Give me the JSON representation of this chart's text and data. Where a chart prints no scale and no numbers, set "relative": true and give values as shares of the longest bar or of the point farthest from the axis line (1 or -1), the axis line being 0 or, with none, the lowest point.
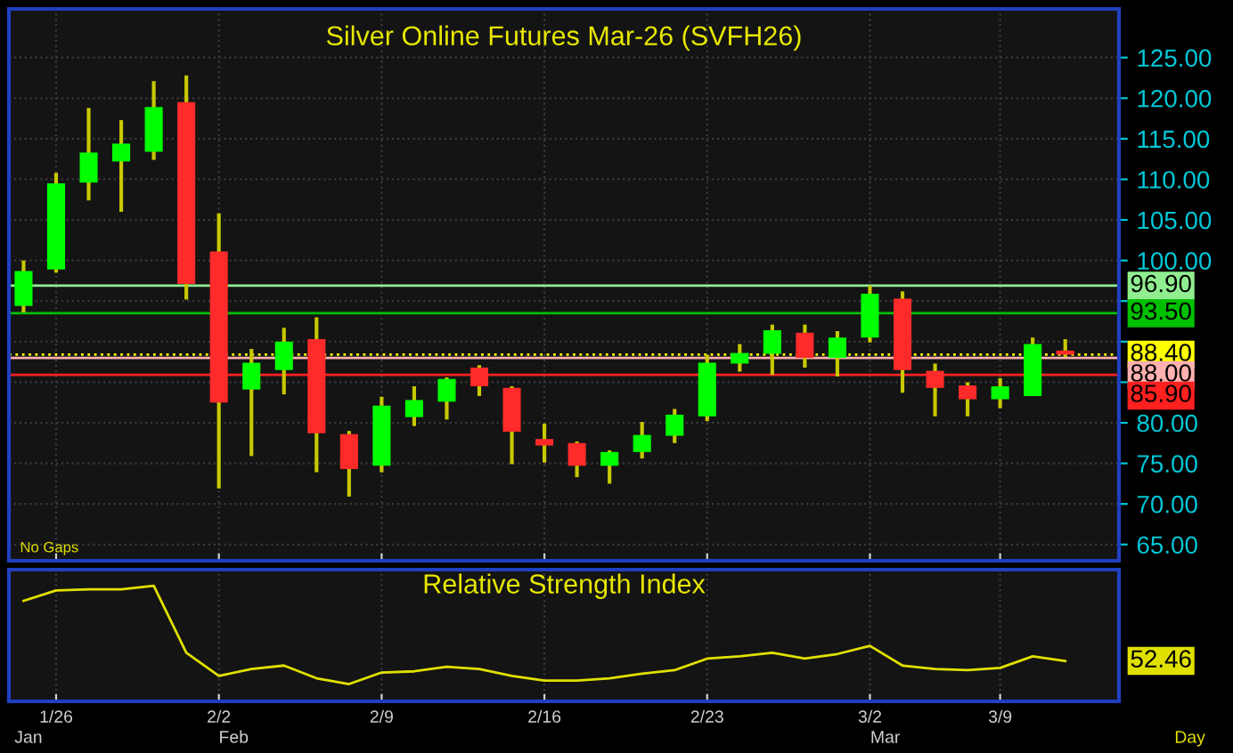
{
  "chart_data": [
    {
      "type": "candlestick",
      "title": "Silver Online Futures Mar-26 (SVFH26)",
      "categories": [
        null,
        null,
        null,
        null,
        null,
        null,
        null,
        null,
        null,
        null,
        null,
        null,
        null,
        null,
        null,
        null,
        null,
        null,
        null,
        null,
        null,
        null,
        null,
        null,
        null,
        null,
        null,
        null,
        null,
        null,
        null,
        null,
        null
      ],
      "ohlc": [
        [
          94.4,
          100.0,
          93.6,
          98.7
        ],
        [
          98.9,
          110.8,
          98.5,
          109.5
        ],
        [
          109.6,
          118.8,
          107.4,
          113.3
        ],
        [
          112.2,
          117.3,
          106.0,
          114.4
        ],
        [
          113.4,
          122.1,
          112.4,
          118.9
        ],
        [
          119.5,
          122.8,
          95.2,
          97.1
        ],
        [
          101.1,
          105.8,
          71.9,
          82.5
        ],
        [
          84.1,
          89.1,
          75.9,
          87.4
        ],
        [
          86.5,
          91.7,
          83.5,
          90.0
        ],
        [
          90.3,
          93.0,
          73.9,
          78.7
        ],
        [
          78.6,
          79.0,
          70.9,
          74.3
        ],
        [
          74.7,
          83.2,
          73.9,
          82.1
        ],
        [
          80.7,
          84.5,
          79.6,
          82.8
        ],
        [
          82.6,
          85.6,
          80.4,
          85.4
        ],
        [
          86.8,
          87.1,
          83.3,
          84.5
        ],
        [
          84.3,
          84.5,
          74.9,
          78.9
        ],
        [
          78.0,
          79.9,
          75.1,
          77.2
        ],
        [
          77.5,
          77.7,
          73.3,
          74.7
        ],
        [
          74.7,
          76.6,
          72.5,
          76.4
        ],
        [
          76.4,
          80.1,
          75.6,
          78.5
        ],
        [
          78.4,
          81.7,
          77.5,
          81.0
        ],
        [
          80.8,
          88.4,
          80.2,
          87.4
        ],
        [
          87.3,
          89.7,
          86.3,
          88.6
        ],
        [
          88.5,
          92.1,
          85.9,
          91.4
        ],
        [
          91.1,
          92.1,
          86.8,
          88.0
        ],
        [
          88.0,
          91.3,
          85.7,
          90.5
        ],
        [
          90.5,
          96.9,
          89.9,
          95.9
        ],
        [
          95.3,
          96.2,
          83.7,
          86.5
        ],
        [
          86.4,
          87.3,
          80.8,
          84.3
        ],
        [
          84.6,
          85.0,
          80.8,
          82.9
        ],
        [
          82.9,
          85.5,
          81.8,
          84.5
        ],
        [
          83.3,
          90.5,
          83.3,
          89.7
        ],
        [
          88.9,
          90.3,
          88.1,
          88.4
        ]
      ],
      "colors": [
        "#00ff00",
        "#00ff00",
        "#00ff00",
        "#00ff00",
        "#00ff00",
        "#ff2a2a",
        "#ff2a2a",
        "#00ff00",
        "#00ff00",
        "#ff2a2a",
        "#ff2a2a",
        "#00ff00",
        "#00ff00",
        "#00ff00",
        "#ff2a2a",
        "#ff2a2a",
        "#ff2a2a",
        "#ff2a2a",
        "#00ff00",
        "#00ff00",
        "#00ff00",
        "#00ff00",
        "#00ff00",
        "#00ff00",
        "#ff2a2a",
        "#00ff00",
        "#00ff00",
        "#ff2a2a",
        "#ff2a2a",
        "#ff2a2a",
        "#00ff00",
        "#00ff00",
        "#ff2a2a"
      ],
      "ylim": [
        63,
        131
      ],
      "yticks": [
        {
          "value": 65,
          "label": "65.00"
        },
        {
          "value": 70,
          "label": "70.00"
        },
        {
          "value": 75,
          "label": "75.00"
        },
        {
          "value": 80,
          "label": "80.00"
        },
        {
          "value": 85,
          "label": null
        },
        {
          "value": 90,
          "label": null
        },
        {
          "value": 95,
          "label": null
        },
        {
          "value": 100,
          "label": "100.00"
        },
        {
          "value": 105,
          "label": "105.00"
        },
        {
          "value": 110,
          "label": "110.00"
        },
        {
          "value": 115,
          "label": "115.00"
        },
        {
          "value": 120,
          "label": "120.00"
        },
        {
          "value": 125,
          "label": "125.00"
        }
      ],
      "ref_lines": [
        {
          "axis": "y",
          "value": 96.9,
          "label": "96.90",
          "color": "#90ee90"
        },
        {
          "axis": "y",
          "value": 93.5,
          "label": "93.50",
          "color": "#00c000"
        },
        {
          "axis": "y",
          "value": 88.4,
          "label": "88.40",
          "color": "#ffff00",
          "line_style": "dotted"
        },
        {
          "axis": "y",
          "value": 88.0,
          "label": "88.00",
          "color": "#ffb0b0"
        },
        {
          "axis": "y",
          "value": 85.9,
          "label": "85.90",
          "color": "#ff2020"
        }
      ],
      "annotations": [
        "No Gaps"
      ],
      "grid": true,
      "tick_labels": "y"
    },
    {
      "type": "line",
      "title": "Relative Strength Index",
      "categories": [
        null,
        "1/26",
        null,
        null,
        null,
        null,
        "2/2",
        null,
        null,
        null,
        null,
        "2/9",
        null,
        null,
        null,
        null,
        "2/16",
        null,
        null,
        null,
        null,
        "2/23",
        null,
        null,
        null,
        null,
        "3/2",
        null,
        null,
        null,
        "3/9",
        null,
        null
      ],
      "relative": true,
      "series": [
        {
          "color": "#e0e000",
          "values": [
            0.87,
            0.96,
            0.97,
            0.97,
            1.0,
            0.42,
            0.22,
            0.28,
            0.31,
            0.2,
            0.15,
            0.25,
            0.26,
            0.3,
            0.28,
            0.22,
            0.18,
            0.18,
            0.2,
            0.24,
            0.27,
            0.37,
            0.39,
            0.42,
            0.37,
            0.41,
            0.48,
            0.31,
            0.28,
            0.27,
            0.29,
            0.39,
            0.35
          ]
        }
      ],
      "annotations": [
        "Jan",
        "Feb",
        "Mar",
        "Day",
        "52.46"
      ],
      "grid": "x",
      "tick_labels": "x"
    }
  ]
}
